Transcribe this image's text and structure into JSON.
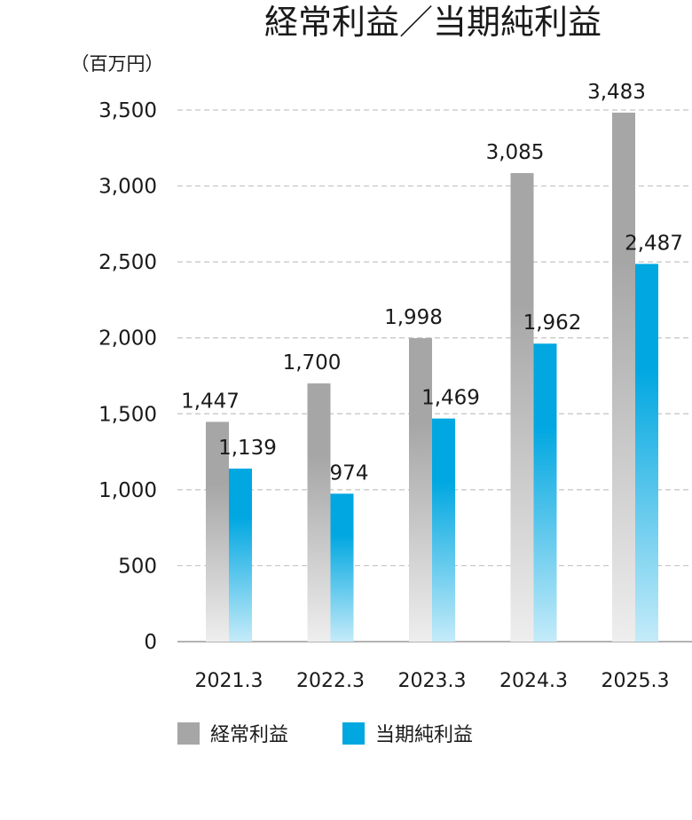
{
  "chart_data": {
    "type": "bar",
    "title": "経常利益／当期純利益",
    "unit_label": "（百万円）",
    "categories": [
      "2021.3",
      "2022.3",
      "2023.3",
      "2024.3",
      "2025.3"
    ],
    "series": [
      {
        "name": "経常利益",
        "values": [
          1447,
          1700,
          1998,
          3085,
          3483
        ],
        "value_labels": [
          "1,447",
          "1,700",
          "1,998",
          "3,085",
          "3,483"
        ],
        "color": "#a6a6a6",
        "gradient_end": "#eeeeee"
      },
      {
        "name": "当期純利益",
        "values": [
          1139,
          974,
          1469,
          1962,
          2487
        ],
        "value_labels": [
          "1,139",
          "974",
          "1,469",
          "1,962",
          "2,487"
        ],
        "color": "#00a7e1",
        "gradient_end": "#c4ebf9"
      }
    ],
    "ylim": [
      0,
      3500
    ],
    "yticks": [
      0,
      500,
      1000,
      1500,
      2000,
      2500,
      3000,
      3500
    ],
    "ytick_labels": [
      "0",
      "500",
      "1,000",
      "1,500",
      "2,000",
      "2,500",
      "3,000",
      "3,500"
    ],
    "grid": true,
    "legend": "bottom-left"
  }
}
